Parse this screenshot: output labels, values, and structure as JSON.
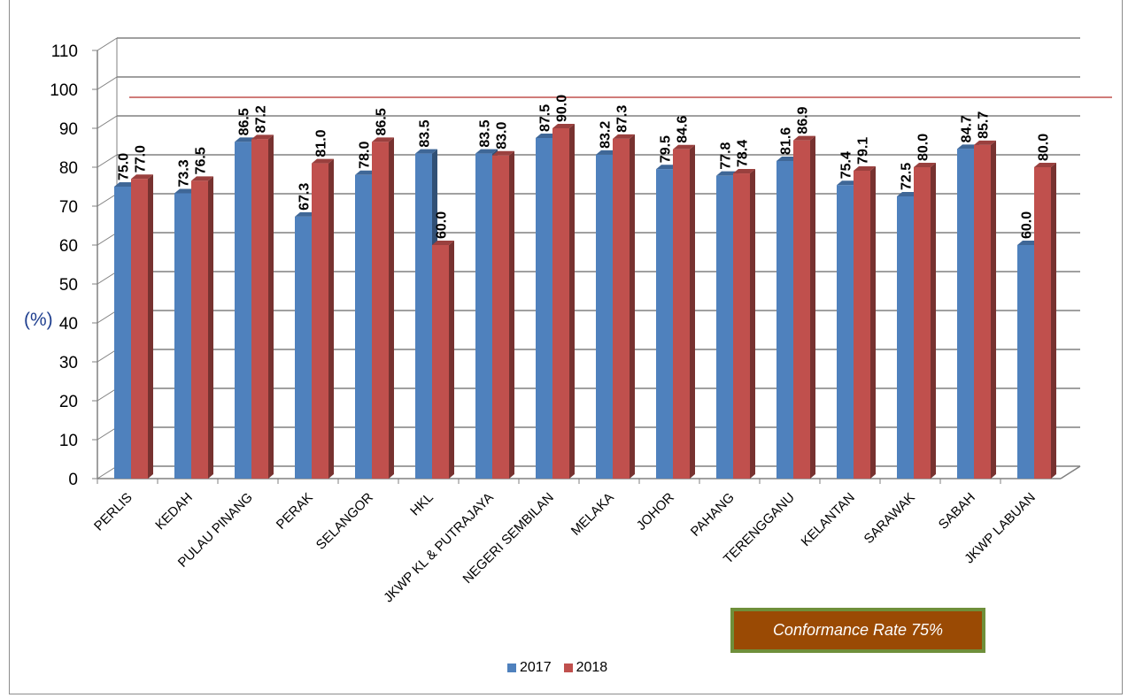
{
  "chart_data": {
    "type": "bar",
    "ylabel": "(%)",
    "ylim": [
      0,
      110
    ],
    "ytick_step": 10,
    "categories": [
      "PERLIS",
      "KEDAH",
      "PULAU PINANG",
      "PERAK",
      "SELANGOR",
      "HKL",
      "JKWP KL & PUTRAJAYA",
      "NEGERI SEMBILAN",
      "MELAKA",
      "JOHOR",
      "PAHANG",
      "TERENGGANU",
      "KELANTAN",
      "SARAWAK",
      "SABAH",
      "JKWP LABUAN"
    ],
    "series": [
      {
        "name": "2017",
        "color": "#4f81bd",
        "values": [
          75.0,
          73.3,
          86.5,
          67.3,
          78.0,
          83.5,
          83.5,
          87.5,
          83.2,
          79.5,
          77.8,
          81.6,
          75.4,
          72.5,
          84.7,
          60.0
        ]
      },
      {
        "name": "2018",
        "color": "#c0504d",
        "values": [
          77.0,
          76.5,
          87.2,
          81.0,
          86.5,
          60.0,
          83.0,
          90.0,
          87.3,
          84.6,
          78.4,
          86.9,
          79.1,
          80.0,
          85.7,
          80.0
        ]
      }
    ],
    "reference_line": {
      "value": 95,
      "color": "#c0504d"
    },
    "annotation": "Conformance Rate 75%",
    "legend_position": "bottom",
    "grid": true
  }
}
